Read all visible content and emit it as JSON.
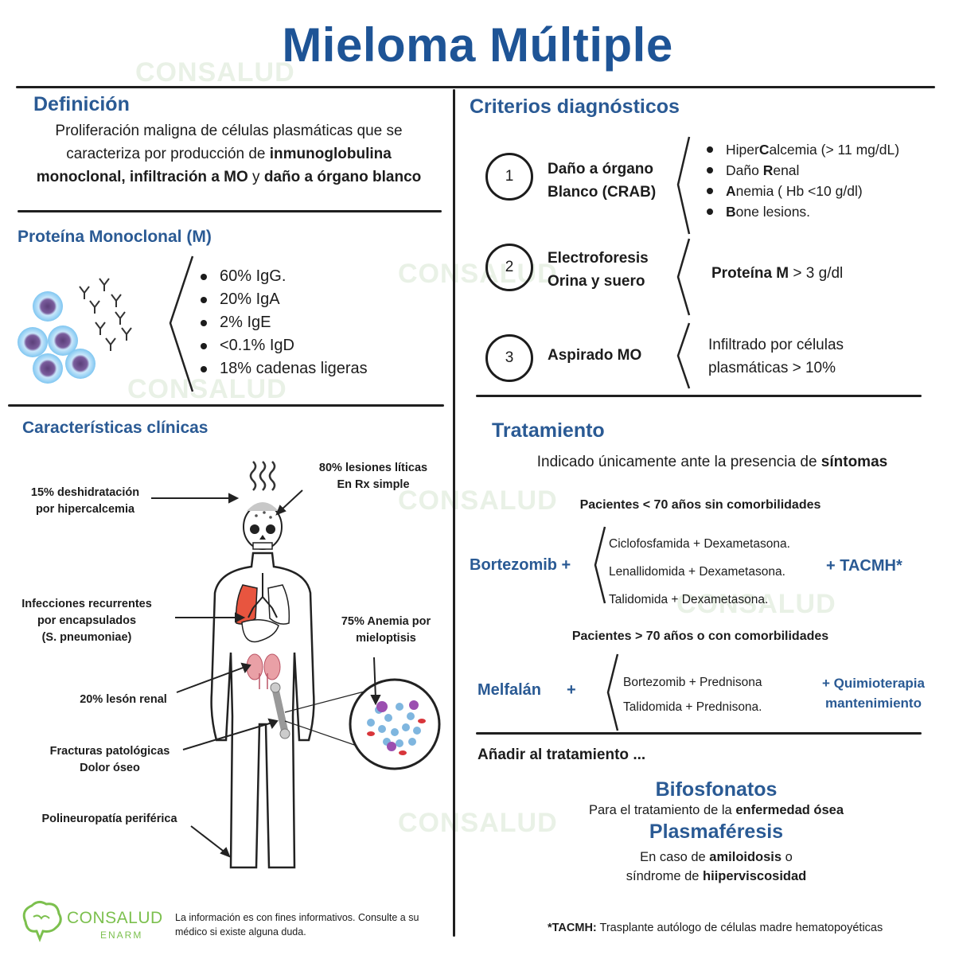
{
  "title": "Mieloma Múltiple",
  "watermark": "CONSALUD",
  "definicion": {
    "heading": "Definición",
    "line1": "Proliferación maligna de células plasmáticas que se",
    "line2_pre": "caracteriza por producción de ",
    "line2_bold": "inmunoglobulina",
    "line3_b1": "monoclonal, infiltración a MO",
    "line3_mid": " y ",
    "line3_b2": "daño a órgano blanco"
  },
  "proteina": {
    "heading": "Proteína Monoclonal (M)",
    "items": [
      "60% IgG.",
      "20% IgA",
      "2% IgE",
      "<0.1% IgD",
      "18% cadenas ligeras"
    ]
  },
  "clinicas": {
    "heading": "Características clínicas",
    "deshidratacion": [
      "15% deshidratación",
      "por hipercalcemia"
    ],
    "liticas": [
      "80% lesiones líticas",
      "En Rx simple"
    ],
    "infecciones": [
      "Infecciones recurrentes",
      "por encapsulados",
      "(S. pneumoniae)"
    ],
    "anemia": [
      "75% Anemia por",
      "mieloptisis"
    ],
    "renal": "20% lesón renal",
    "fracturas": [
      "Fracturas patológicas",
      "Dolor óseo"
    ],
    "polineuropatia": "Polineuropatía periférica"
  },
  "criterios": {
    "heading": "Criterios diagnósticos",
    "c1": {
      "num": "1",
      "label": [
        "Daño a órgano",
        "Blanco (CRAB)"
      ],
      "items": [
        {
          "pre": "Hiper",
          "bold": "C",
          "post": "alcemia (> 11 mg/dL)"
        },
        {
          "pre": "Daño ",
          "bold": "R",
          "post": "enal"
        },
        {
          "pre": "",
          "bold": "A",
          "post": "nemia ( Hb <10 g/dl)"
        },
        {
          "pre": "",
          "bold": "B",
          "post": "one lesions."
        }
      ]
    },
    "c2": {
      "num": "2",
      "label": [
        "Electroforesis",
        "Orina y suero"
      ],
      "bold": "Proteína M",
      "value": " > 3 g/dl"
    },
    "c3": {
      "num": "3",
      "label": "Aspirado MO",
      "text": [
        "Infiltrado por células",
        "plasmáticas > 10%"
      ]
    }
  },
  "tratamiento": {
    "heading": "Tratamiento",
    "intro_pre": "Indicado únicamente ante la presencia de ",
    "intro_bold": "síntomas",
    "grupo1": {
      "title": "Pacientes < 70 años sin comorbilidades",
      "drug": "Bortezomib +",
      "options": [
        "Ciclofosfamida + Dexametasona.",
        "Lenallidomida + Dexametasona.",
        "Talidomida  + Dexametasona."
      ],
      "extra": "+ TACMH*"
    },
    "grupo2": {
      "title": "Pacientes > 70 años o con comorbilidades",
      "drug": "Melfalán",
      "plus": "+",
      "options": [
        "Bortezomib + Prednisona",
        "Talidomida + Prednisona."
      ],
      "extra": [
        "+ Quimioterapia",
        "mantenimiento"
      ]
    },
    "anadir": "Añadir al tratamiento ...",
    "bifosfonatos": {
      "title": "Bifosfonatos",
      "pre": "Para el tratamiento de la ",
      "bold": "enfermedad ósea"
    },
    "plasmaferesis": {
      "title": "Plasmaféresis",
      "l1_pre": "En caso de ",
      "l1_bold": "amiloidosis",
      "l1_post": " o",
      "l2_pre": "síndrome de ",
      "l2_bold": "hiiperviscosidad"
    }
  },
  "footer": {
    "logo_text": "CONSALUD",
    "logo_sub": "ENARM",
    "disclaimer": [
      "La información es con fines informativos. Consulte a su",
      "médico si existe alguna duda."
    ],
    "note_bold": "*TACMH:",
    "note": " Trasplante autólogo de células madre hematopoyéticas"
  },
  "colors": {
    "heading": "#2a5a94",
    "title": "#1e5496",
    "lung_highlight": "#e8553f",
    "kidney": "#e9a0a6",
    "cell": "#8fd0f4",
    "logo_green": "#7cc04e"
  }
}
